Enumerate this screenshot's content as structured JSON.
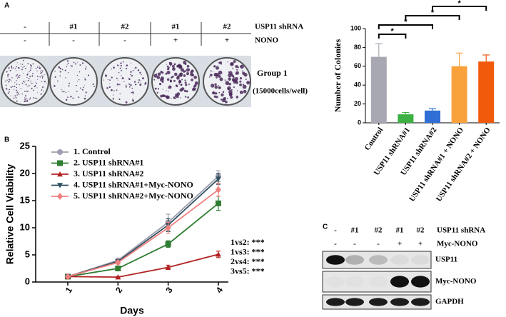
{
  "panel_a": {
    "label": "A",
    "header": {
      "rows": [
        {
          "cells": [
            "-",
            "#1",
            "#2",
            "#1",
            "#2"
          ],
          "label": "USP11 shRNA"
        },
        {
          "cells": [
            "-",
            "-",
            "-",
            "+",
            "+"
          ],
          "label": "NONO"
        }
      ]
    },
    "group": "Group 1",
    "density": "(15000cells/well)"
  },
  "chart_data": [
    {
      "type": "bar",
      "ylabel": "Number of Colonies",
      "categories": [
        "Control",
        "USP11 shRNA#1",
        "USP11 shRNA#2",
        "USP11 shRNA#1 + NONO",
        "USP11 shRNA#2 + NONO"
      ],
      "values": [
        70,
        9,
        13,
        60,
        65
      ],
      "errors": [
        14,
        2,
        2,
        14,
        7
      ],
      "colors": [
        "#a8a8b2",
        "#3cb043",
        "#2f6fd6",
        "#f9a23c",
        "#f25a0b"
      ],
      "ylim": [
        0,
        100
      ],
      "yticks": [
        0,
        20,
        40,
        60,
        80,
        100
      ],
      "comparisons": [
        {
          "between": [
            0,
            1
          ],
          "label": "*"
        },
        {
          "between": [
            0,
            2
          ],
          "label": "*"
        },
        {
          "between": [
            1,
            3
          ],
          "label": "*"
        },
        {
          "between": [
            2,
            4
          ],
          "label": "*"
        }
      ]
    },
    {
      "type": "line",
      "panel": "B",
      "xlabel": "Days",
      "ylabel": "Relative Cell Viability",
      "x": [
        1,
        2,
        3,
        4
      ],
      "xlim": [
        0.36,
        4.2
      ],
      "xticks": [
        1,
        2,
        3,
        4
      ],
      "ylim": [
        0,
        25
      ],
      "yticks": [
        0,
        5,
        10,
        15,
        20,
        25
      ],
      "series": [
        {
          "name": "1. Control",
          "color": "#9e9eae",
          "marker": "o",
          "values": [
            1,
            4,
            11,
            19.5
          ],
          "errors": [
            0.1,
            0.3,
            1.5,
            1
          ]
        },
        {
          "name": "2. USP11 shRNA#1",
          "color": "#2e7d32",
          "marker": "s",
          "values": [
            1,
            2.5,
            7,
            14.5
          ],
          "errors": [
            0.1,
            0.3,
            0.6,
            1.3
          ]
        },
        {
          "name": "3. USP11 shRNA#2",
          "color": "#b22222",
          "marker": "^",
          "values": [
            1,
            0.9,
            2.7,
            5.1
          ],
          "errors": [
            0.1,
            0.1,
            0.4,
            0.6
          ]
        },
        {
          "name": "4. USP11 shRNA#1+Myc-NONO",
          "color": "#2f4f5f",
          "marker": "v",
          "values": [
            1,
            3.8,
            10.5,
            19
          ],
          "errors": [
            0.1,
            0.3,
            1.2,
            1
          ]
        },
        {
          "name": "5. USP11 shRNA#2+Myc-NONO",
          "color": "#f08080",
          "marker": "D",
          "values": [
            1,
            3.6,
            10,
            17
          ],
          "errors": [
            0.1,
            0.3,
            1,
            1.2
          ]
        }
      ],
      "annotations": [
        "1vs2: ***",
        "1vs3: ***",
        "2vs4: ***",
        "3vs5: ***"
      ]
    }
  ],
  "panel_c": {
    "label": "C",
    "header": {
      "rows": [
        {
          "cells": [
            "-",
            "#1",
            "#2",
            "#1",
            "#2"
          ],
          "label": "USP11 shRNA"
        },
        {
          "cells": [
            "-",
            "-",
            "-",
            "+",
            "+"
          ],
          "label": "Myc-NONO"
        }
      ]
    },
    "bands": [
      "USP11",
      "Myc-NONO",
      "GAPDH"
    ]
  }
}
